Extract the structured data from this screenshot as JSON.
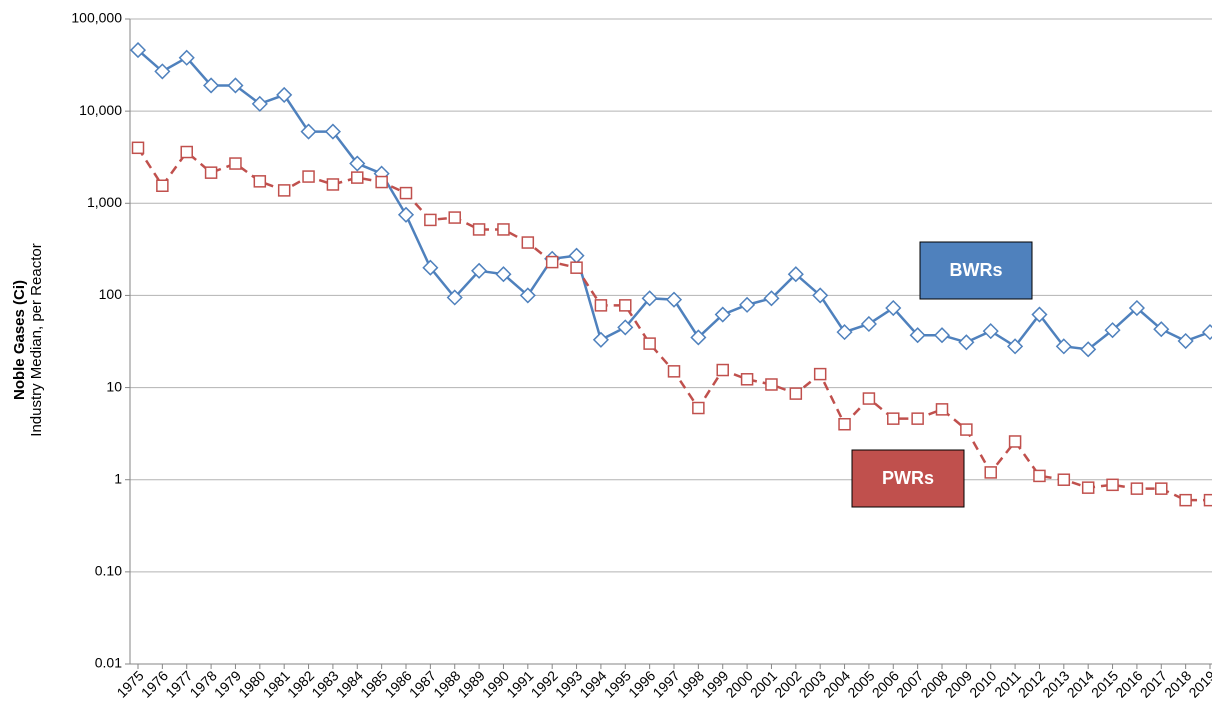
{
  "chart_data": {
    "type": "line",
    "ylabel": "Noble Gases (Ci)",
    "ylabel_sub": "Industry Median, per Reactor",
    "log_scale": true,
    "grid": true,
    "categories": [
      "1975",
      "1976",
      "1977",
      "1978",
      "1979",
      "1980",
      "1981",
      "1982",
      "1983",
      "1984",
      "1985",
      "1986",
      "1987",
      "1988",
      "1989",
      "1990",
      "1991",
      "1992",
      "1993",
      "1994",
      "1995",
      "1996",
      "1997",
      "1998",
      "1999",
      "2000",
      "2001",
      "2002",
      "2003",
      "2004",
      "2005",
      "2006",
      "2007",
      "2008",
      "2009",
      "2010",
      "2011",
      "2012",
      "2013",
      "2014",
      "2015",
      "2016",
      "2017",
      "2018",
      "2019"
    ],
    "series": [
      {
        "name": "BWRs",
        "color": "#4f81bd",
        "marker": "diamond",
        "line_style": "solid",
        "values": [
          46000,
          27000,
          38000,
          19000,
          19000,
          12000,
          15000,
          6000,
          6000,
          2700,
          2100,
          750,
          200,
          95,
          185,
          170,
          100,
          250,
          270,
          33,
          45,
          93,
          90,
          35,
          62,
          79,
          93,
          170,
          100,
          40,
          49,
          73,
          37,
          37,
          31,
          41,
          28,
          62,
          28,
          26,
          42,
          73,
          43,
          32,
          40
        ]
      },
      {
        "name": "PWRs",
        "color": "#c0504d",
        "marker": "square",
        "line_style": "dashed",
        "values": [
          4000,
          1550,
          3600,
          2150,
          2700,
          1730,
          1380,
          1950,
          1600,
          1900,
          1700,
          1290,
          660,
          700,
          520,
          520,
          375,
          230,
          200,
          78,
          78,
          30,
          15,
          6,
          15.5,
          12.3,
          10.8,
          8.6,
          14,
          4,
          7.6,
          4.6,
          4.6,
          5.8,
          3.5,
          1.2,
          2.6,
          1.1,
          1.0,
          0.82,
          0.88,
          0.8,
          0.8,
          0.6,
          0.6
        ]
      }
    ],
    "ylim": [
      0.01,
      100000
    ],
    "yticks": [
      0.01,
      {
        "value": 0.1,
        "label": "0.10"
      },
      1,
      10,
      100,
      {
        "value": 1000,
        "label": "1,000"
      },
      {
        "value": 10000,
        "label": "10,000"
      },
      {
        "value": 100000,
        "label": "100,000"
      }
    ]
  }
}
